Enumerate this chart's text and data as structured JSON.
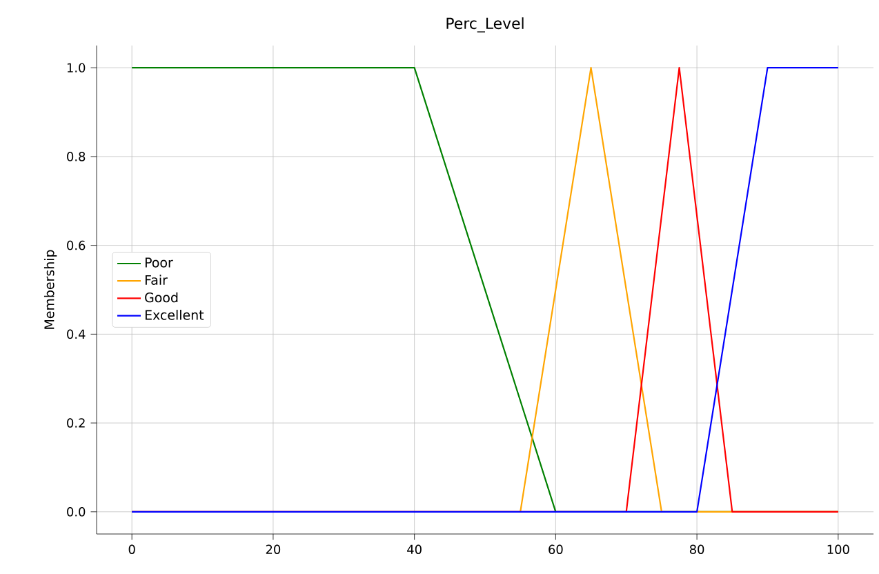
{
  "chart_data": {
    "type": "line",
    "title": "Perc_Level",
    "ylabel": "Membership",
    "xlim": [
      -5,
      105
    ],
    "ylim": [
      -0.05,
      1.05
    ],
    "xticks": [
      0,
      20,
      40,
      60,
      80,
      100
    ],
    "yticks": [
      {
        "value": 0,
        "label": "0.0"
      },
      {
        "value": 0.2,
        "label": "0.2"
      },
      {
        "value": 0.4,
        "label": "0.4"
      },
      {
        "value": 0.6,
        "label": "0.6"
      },
      {
        "value": 0.8,
        "label": "0.8"
      },
      {
        "value": 1,
        "label": "1.0"
      }
    ],
    "grid": true,
    "legend": "left",
    "marker": "none",
    "line_style": "solid",
    "series": [
      {
        "name": "Poor",
        "color": "#008000",
        "x": [
          0,
          40,
          60,
          100
        ],
        "values": [
          1,
          1,
          0,
          0
        ]
      },
      {
        "name": "Fair",
        "color": "#ffa500",
        "x": [
          0,
          55,
          65,
          75,
          100
        ],
        "values": [
          0,
          0,
          1,
          0,
          0
        ]
      },
      {
        "name": "Good",
        "color": "#ff0000",
        "x": [
          0,
          70,
          77.5,
          85,
          100
        ],
        "values": [
          0,
          0,
          1,
          0,
          0
        ]
      },
      {
        "name": "Excellent",
        "color": "#0000ff",
        "x": [
          0,
          80,
          90,
          100
        ],
        "values": [
          0,
          0,
          1,
          1
        ]
      }
    ]
  }
}
